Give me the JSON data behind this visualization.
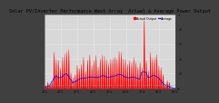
{
  "title": "Solar PV/Inverter Performance West Array  Actual & Average Power Output",
  "bg_color": "#404040",
  "plot_bg": "#d8d8d8",
  "grid_color": "#ffffff",
  "area_color": "#ff0000",
  "avg_line_color": "#0000ff",
  "spike_color": "#ff0000",
  "ref_line_color": "#00ccff",
  "legend_actual": "Actual Output",
  "legend_avg": "Average",
  "ylim": [
    0,
    1.0
  ],
  "n_points": 500,
  "title_fontsize": 3.8,
  "tick_fontsize": 2.8,
  "outer_bg": "#2a2a2a"
}
